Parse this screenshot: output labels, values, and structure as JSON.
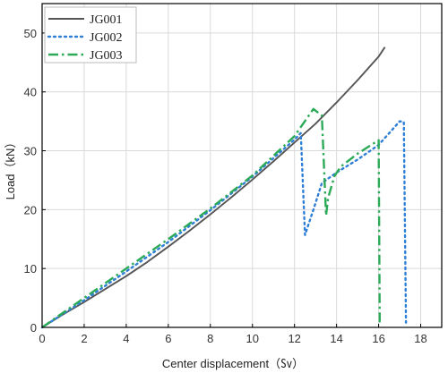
{
  "chart_data": {
    "type": "line",
    "xlabel": "Center displacement（㏜）",
    "ylabel": "Load（kN）",
    "xlim": [
      0,
      19
    ],
    "ylim": [
      0,
      55
    ],
    "xticks": [
      0,
      2,
      4,
      6,
      8,
      10,
      12,
      14,
      16,
      18
    ],
    "yticks": [
      0,
      10,
      20,
      30,
      40,
      50
    ],
    "grid": true,
    "legend_position": "top-left",
    "series": [
      {
        "name": "JG001",
        "color": "#555555",
        "style": "solid",
        "x": [
          0,
          1,
          2,
          3,
          4,
          5,
          6,
          7,
          8,
          9,
          10,
          11,
          12,
          13,
          14,
          15,
          16,
          16.3
        ],
        "y": [
          0,
          2.2,
          4.3,
          6.5,
          8.7,
          11.1,
          13.7,
          16.4,
          19.2,
          22.1,
          25.1,
          28.2,
          31.4,
          34.6,
          38.2,
          42.0,
          46.0,
          47.6
        ]
      },
      {
        "name": "JG002",
        "color": "#2f7fd6",
        "style": "dotted",
        "x": [
          0,
          2,
          4,
          6,
          8,
          10,
          12,
          12.3,
          12.5,
          12.9,
          13.3,
          14,
          15,
          16,
          17,
          17.2,
          17.3
        ],
        "y": [
          0,
          4.6,
          9.5,
          14.5,
          19.9,
          25.6,
          31.9,
          33.0,
          15.7,
          20.0,
          24.5,
          26.3,
          28.5,
          31.0,
          35.0,
          34.9,
          0.8
        ]
      },
      {
        "name": "JG003",
        "color": "#2daa58",
        "style": "dashdot",
        "x": [
          0,
          2,
          4,
          6,
          8,
          10,
          12,
          12.9,
          13.3,
          13.5,
          13.6,
          13.9,
          14.2,
          15,
          16,
          16.05,
          16.1
        ],
        "y": [
          0,
          5.0,
          10.0,
          15.0,
          20.2,
          25.8,
          32.5,
          37.1,
          36.0,
          19.0,
          22.0,
          25.7,
          27.3,
          29.5,
          31.8,
          1.0,
          1.0
        ]
      }
    ]
  }
}
